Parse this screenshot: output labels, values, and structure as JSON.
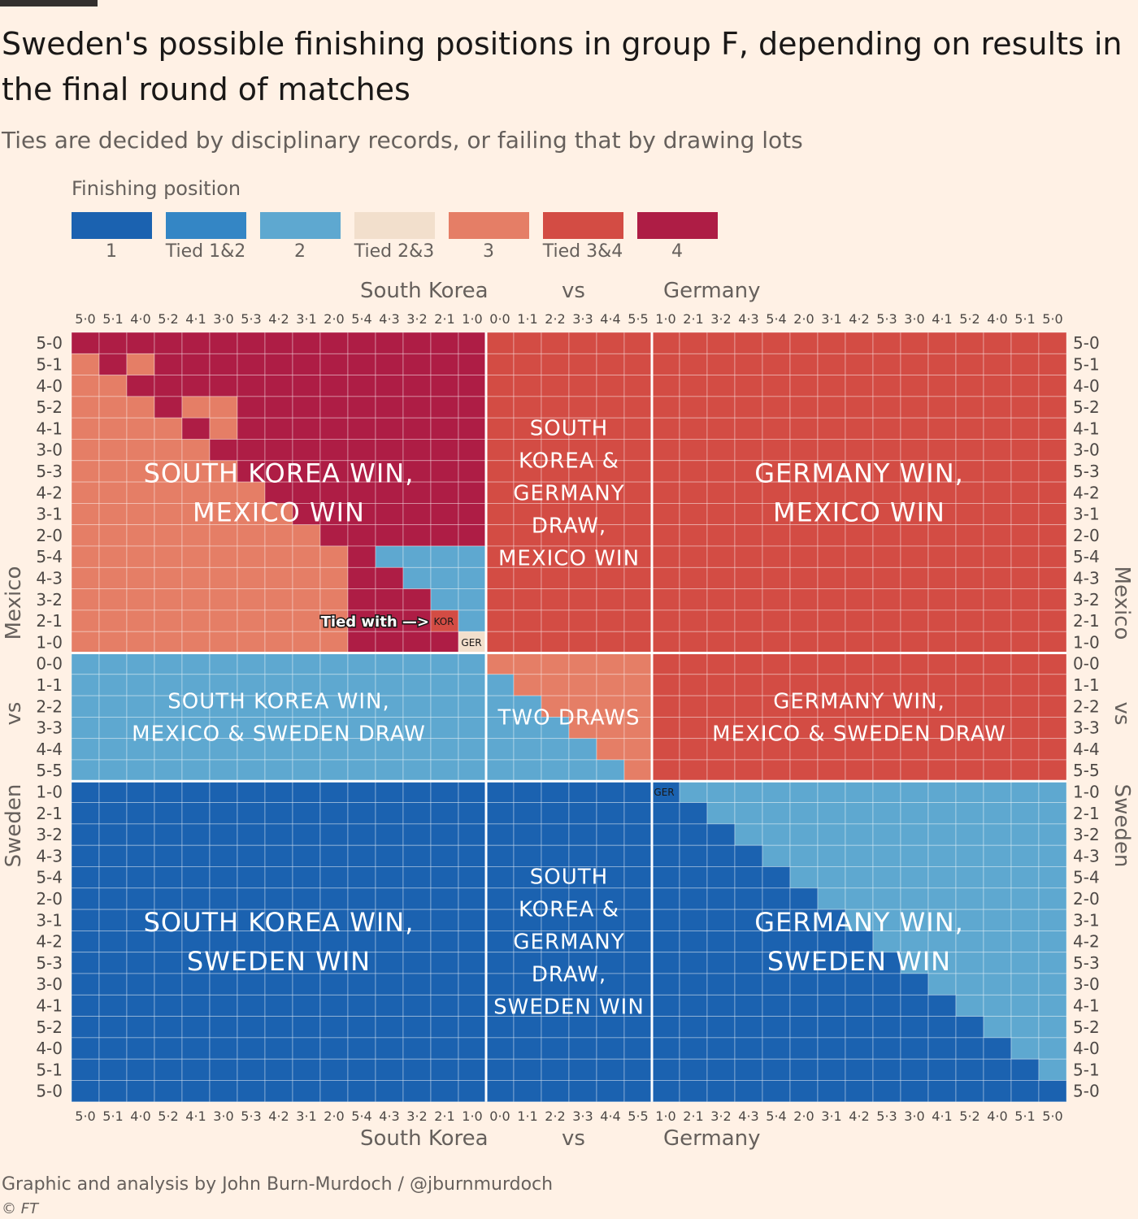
{
  "header": {
    "title": "Sweden's possible finishing positions in group F, depending on results in the final round of matches",
    "subtitle": "Ties are decided by disciplinary records, or failing that by drawing lots"
  },
  "legend": {
    "title": "Finishing position",
    "items": [
      {
        "label": "1",
        "color": "#1b62b0"
      },
      {
        "label": "Tied 1&2",
        "color": "#3486c5"
      },
      {
        "label": "2",
        "color": "#5ea8d0"
      },
      {
        "label": "Tied 2&3",
        "color": "#f2dfcc"
      },
      {
        "label": "3",
        "color": "#e57e66"
      },
      {
        "label": "Tied 3&4",
        "color": "#d34c44"
      },
      {
        "label": "4",
        "color": "#ae1d45"
      }
    ]
  },
  "axes": {
    "top": {
      "left": "South Korea",
      "mid": "vs",
      "right": "Germany"
    },
    "bottom": {
      "left": "South Korea",
      "mid": "vs",
      "right": "Germany"
    },
    "left": {
      "top": "Mexico",
      "mid": "vs",
      "bottom": "Sweden"
    },
    "right": {
      "top": "Mexico",
      "mid": "vs",
      "bottom": "Sweden"
    }
  },
  "annotations": {
    "tied_with": "Tied with —>",
    "kor": "KOR",
    "ger": "GER",
    "ger2": "GER"
  },
  "footer": {
    "source": "Graphic and analysis by John Burn-Murdoch / @jburnmurdoch",
    "copyright": "© FT"
  },
  "chart_data": {
    "type": "heatmap",
    "x_categories": [
      "5-0",
      "5-1",
      "4-0",
      "5-2",
      "4-1",
      "3-0",
      "5-3",
      "4-2",
      "3-1",
      "2-0",
      "5-4",
      "4-3",
      "3-2",
      "2-1",
      "1-0",
      "0-0",
      "1-1",
      "2-2",
      "3-3",
      "4-4",
      "5-5",
      "1-0",
      "2-1",
      "3-2",
      "4-3",
      "5-4",
      "2-0",
      "3-1",
      "4-2",
      "5-3",
      "3-0",
      "4-1",
      "5-2",
      "4-0",
      "5-1",
      "5-0"
    ],
    "y_categories": [
      "5-0",
      "5-1",
      "4-0",
      "5-2",
      "4-1",
      "3-0",
      "5-3",
      "4-2",
      "3-1",
      "2-0",
      "5-4",
      "4-3",
      "3-2",
      "2-1",
      "1-0",
      "0-0",
      "1-1",
      "2-2",
      "3-3",
      "4-4",
      "5-5",
      "1-0",
      "2-1",
      "3-2",
      "4-3",
      "5-4",
      "2-0",
      "3-1",
      "4-2",
      "5-3",
      "3-0",
      "4-1",
      "5-2",
      "4-0",
      "5-1",
      "5-0"
    ],
    "x_tick_labels": [
      "5·0",
      "5·1",
      "4·0",
      "5·2",
      "4·1",
      "3·0",
      "5·3",
      "4·2",
      "3·1",
      "2·0",
      "5·4",
      "4·3",
      "3·2",
      "2·1",
      "1·0",
      "0·0",
      "1·1",
      "2·2",
      "3·3",
      "4·4",
      "5·5",
      "1·0",
      "2·1",
      "3·2",
      "4·3",
      "5·4",
      "2·0",
      "3·1",
      "4·2",
      "5·3",
      "3·0",
      "4·1",
      "5·2",
      "4·0",
      "5·1",
      "5·0"
    ],
    "x_groups": [
      {
        "name": "South Korea win",
        "count": 15
      },
      {
        "name": "Draw",
        "count": 6
      },
      {
        "name": "Germany win",
        "count": 15
      }
    ],
    "y_groups": [
      {
        "name": "Mexico win",
        "count": 15
      },
      {
        "name": "Draw",
        "count": 6
      },
      {
        "name": "Sweden win",
        "count": 15
      }
    ],
    "value_legend": [
      "1",
      "Tied 1&2",
      "2",
      "Tied 2&3",
      "3",
      "Tied 3&4",
      "4"
    ],
    "values": [
      "666666666666666555555555555555555555",
      "464666666666666555555555555555555555",
      "446666666666666555555555555555555555",
      "444644666666666555555555555555555555",
      "444464666666666555555555555555555555",
      "444446666666666555555555555555555555",
      "444444666666666555555555555555555555",
      "444444466666666555555555555555555555",
      "444444446666666555555555555555555555",
      "444444444666666555555555555555555555",
      "444444444462222555555555555555555555",
      "444444444466222555555555555555555555",
      "444444444466622555555555555555555555",
      "444444444466652555555555555555555555",
      "444444444466663555555555555555555555",
      "222222222222222444444555555555555555",
      "222222222222222244444555555555555555",
      "222222222222222224444555555555555555",
      "222222222222222222444555555555555555",
      "222222222222222222244555555555555555",
      "222222222222222222224555555555555555",
      "000000000000000000000022222222222222",
      "000000000000000000000002222222222222",
      "000000000000000000000000222222222222",
      "000000000000000000000000022222222222",
      "000000000000000000000000002222222222",
      "000000000000000000000000000222222222",
      "000000000000000000000000000022222222",
      "000000000000000000000000000002222222",
      "000000000000000000000000000000222222",
      "000000000000000000000000000000022222",
      "000000000000000000000000000000002222",
      "000000000000000000000000000000000222",
      "000000000000000000000000000000000022",
      "000000000000000000000000000000000002",
      "000000000000000000000000000000000000"
    ],
    "regions": [
      {
        "lines": [
          "SOUTH KOREA WIN,",
          "MEXICO WIN"
        ],
        "group": [
          0,
          0
        ]
      },
      {
        "lines": [
          "SOUTH",
          "KOREA &",
          "GERMANY",
          "DRAW,",
          "MEXICO WIN"
        ],
        "group": [
          1,
          0
        ]
      },
      {
        "lines": [
          "GERMANY WIN,",
          "MEXICO WIN"
        ],
        "group": [
          2,
          0
        ]
      },
      {
        "lines": [
          "SOUTH KOREA WIN,",
          "MEXICO & SWEDEN DRAW"
        ],
        "group": [
          0,
          1
        ]
      },
      {
        "lines": [
          "TWO DRAWS"
        ],
        "group": [
          1,
          1
        ]
      },
      {
        "lines": [
          "GERMANY WIN,",
          "MEXICO & SWEDEN DRAW"
        ],
        "group": [
          2,
          1
        ]
      },
      {
        "lines": [
          "SOUTH KOREA WIN,",
          "SWEDEN WIN"
        ],
        "group": [
          0,
          2
        ]
      },
      {
        "lines": [
          "SOUTH",
          "KOREA &",
          "GERMANY",
          "DRAW,",
          "SWEDEN WIN"
        ],
        "group": [
          1,
          2
        ]
      },
      {
        "lines": [
          "GERMANY WIN,",
          "SWEDEN WIN"
        ],
        "group": [
          2,
          2
        ]
      }
    ]
  }
}
